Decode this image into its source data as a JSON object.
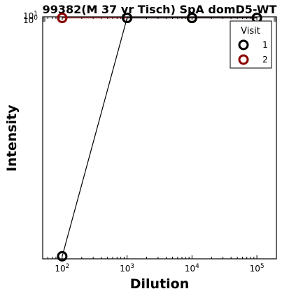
{
  "chart_data": {
    "type": "line",
    "title": "99382(M 37 yr Tisch) SpA domD5-WT",
    "xlabel": "Dilution",
    "ylabel": "Intensity",
    "x_scale": "log",
    "y_scale": "log",
    "xlim": [
      50,
      200000
    ],
    "x_ticks": [
      {
        "base": "10",
        "exp": "2",
        "value": 100
      },
      {
        "base": "10",
        "exp": "3",
        "value": 1000
      },
      {
        "base": "10",
        "exp": "4",
        "value": 10000
      },
      {
        "base": "10",
        "exp": "5",
        "value": 100000
      }
    ],
    "y_ticks_visible": [
      {
        "base": "10",
        "exp": "1"
      },
      {
        "base": "10",
        "exp": "0"
      }
    ],
    "legend": {
      "title": "Visit",
      "placement": "top-right",
      "entries": [
        "1",
        "2"
      ]
    },
    "series": [
      {
        "name": "1",
        "color": "#000000",
        "points": [
          {
            "x": 100,
            "y": 0.0001
          },
          {
            "x": 1000,
            "y": 5
          },
          {
            "x": 10000,
            "y": 5
          },
          {
            "x": 100000,
            "y": 5
          }
        ]
      },
      {
        "name": "2",
        "color": "#8b0000",
        "points": [
          {
            "x": 100,
            "y": 5
          },
          {
            "x": 1000,
            "y": 5
          },
          {
            "x": 10000,
            "y": 5
          },
          {
            "x": 100000,
            "y": 5
          }
        ]
      }
    ]
  }
}
